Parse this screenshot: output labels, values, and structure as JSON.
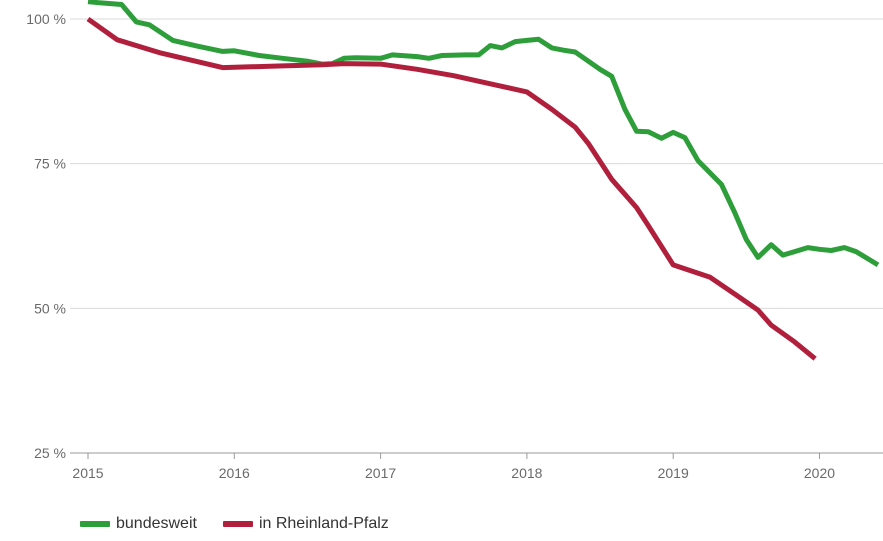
{
  "chart_data": {
    "type": "line",
    "title": "",
    "xlabel": "",
    "ylabel": "",
    "ylim": [
      25,
      100
    ],
    "y_ticks": [
      {
        "value": 100,
        "label": "100 %"
      },
      {
        "value": 75,
        "label": "75 %"
      },
      {
        "value": 50,
        "label": "50 %"
      },
      {
        "value": 25,
        "label": "25 %"
      }
    ],
    "xlim": [
      2015.0,
      2020.4
    ],
    "x_ticks": [
      {
        "value": 2015,
        "label": "2015"
      },
      {
        "value": 2016,
        "label": "2016"
      },
      {
        "value": 2017,
        "label": "2017"
      },
      {
        "value": 2018,
        "label": "2018"
      },
      {
        "value": 2019,
        "label": "2019"
      },
      {
        "value": 2020,
        "label": "2020"
      }
    ],
    "grid": true,
    "legend_position": "bottom-left",
    "series": [
      {
        "name": "bundesweit",
        "color": "#2e9e3b",
        "x": [
          2015.0,
          2015.08,
          2015.23,
          2015.33,
          2015.42,
          2015.58,
          2015.75,
          2015.92,
          2016.0,
          2016.17,
          2016.33,
          2016.5,
          2016.6,
          2016.67,
          2016.75,
          2016.83,
          2017.0,
          2017.08,
          2017.25,
          2017.33,
          2017.42,
          2017.58,
          2017.67,
          2017.75,
          2017.83,
          2017.92,
          2018.0,
          2018.08,
          2018.17,
          2018.25,
          2018.33,
          2018.5,
          2018.58,
          2018.67,
          2018.75,
          2018.83,
          2018.92,
          2019.0,
          2019.08,
          2019.17,
          2019.33,
          2019.42,
          2019.5,
          2019.58,
          2019.67,
          2019.75,
          2019.83,
          2019.92,
          2020.0,
          2020.08,
          2020.17,
          2020.25,
          2020.4
        ],
        "values": [
          103,
          102.8,
          102.5,
          99.5,
          99,
          96.3,
          95.3,
          94.4,
          94.5,
          93.7,
          93.2,
          92.7,
          92.2,
          92.3,
          93.2,
          93.3,
          93.2,
          93.8,
          93.5,
          93.2,
          93.7,
          93.8,
          93.8,
          95.4,
          95.0,
          96.1,
          96.3,
          96.5,
          95.0,
          94.6,
          94.3,
          91.3,
          90.1,
          84.4,
          80.6,
          80.5,
          79.4,
          80.4,
          79.5,
          75.5,
          71.4,
          66.6,
          61.9,
          58.8,
          61.0,
          59.2,
          59.8,
          60.5,
          60.2,
          60.0,
          60.5,
          59.8,
          57.5
        ]
      },
      {
        "name": "in Rheinland-Pfalz",
        "color": "#b0203c",
        "x": [
          2015.0,
          2015.2,
          2015.5,
          2015.92,
          2016.33,
          2016.6,
          2016.75,
          2017.0,
          2017.25,
          2017.5,
          2017.75,
          2018.0,
          2018.17,
          2018.33,
          2018.42,
          2018.58,
          2018.75,
          2018.83,
          2019.0,
          2019.25,
          2019.42,
          2019.58,
          2019.67,
          2019.83,
          2019.97
        ],
        "values": [
          100,
          96.4,
          94.1,
          91.6,
          91.9,
          92.1,
          92.3,
          92.2,
          91.3,
          90.2,
          88.8,
          87.4,
          84.4,
          81.3,
          78.5,
          72.3,
          67.4,
          64.3,
          57.5,
          55.4,
          52.5,
          49.7,
          47.1,
          44.2,
          41.3
        ]
      }
    ]
  }
}
